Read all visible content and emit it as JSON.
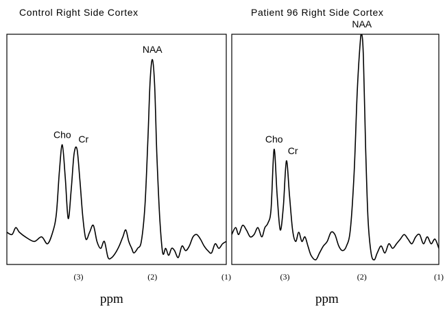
{
  "chart_data": [
    {
      "type": "line",
      "title": "Control Right Side Cortex",
      "xlabel": "ppm",
      "ylabel": "",
      "x_reversed": true,
      "xlim": [
        3.97,
        1.0
      ],
      "ylim": [
        0,
        1
      ],
      "ticks": [
        {
          "value": 3,
          "label": "(3)"
        },
        {
          "value": 2,
          "label": "(2)"
        },
        {
          "value": 1,
          "label": "(1)"
        }
      ],
      "peaks": [
        {
          "label": "Cho",
          "x": 3.22,
          "y": 0.52
        },
        {
          "label": "Cr",
          "x": 3.02,
          "y": 0.5
        },
        {
          "label": "NAA",
          "x": 2.0,
          "y": 0.89
        }
      ],
      "series": [
        {
          "x": [
            3.97,
            3.9,
            3.85,
            3.8,
            3.72,
            3.6,
            3.5,
            3.42,
            3.35,
            3.3,
            3.26,
            3.22,
            3.18,
            3.14,
            3.1,
            3.06,
            3.02,
            2.98,
            2.94,
            2.9,
            2.85,
            2.8,
            2.75,
            2.7,
            2.65,
            2.6,
            2.55,
            2.5,
            2.45,
            2.4,
            2.36,
            2.32,
            2.28,
            2.25,
            2.2,
            2.15,
            2.1,
            2.06,
            2.03,
            2.0,
            1.97,
            1.94,
            1.9,
            1.86,
            1.82,
            1.78,
            1.74,
            1.7,
            1.65,
            1.6,
            1.55,
            1.5,
            1.45,
            1.4,
            1.35,
            1.3,
            1.25,
            1.2,
            1.15,
            1.1,
            1.05,
            1.0
          ],
          "y": [
            0.14,
            0.13,
            0.16,
            0.14,
            0.12,
            0.1,
            0.12,
            0.09,
            0.14,
            0.22,
            0.4,
            0.52,
            0.38,
            0.2,
            0.32,
            0.48,
            0.5,
            0.36,
            0.2,
            0.11,
            0.14,
            0.17,
            0.1,
            0.07,
            0.1,
            0.03,
            0.03,
            0.05,
            0.08,
            0.12,
            0.15,
            0.1,
            0.07,
            0.05,
            0.07,
            0.1,
            0.26,
            0.55,
            0.8,
            0.89,
            0.78,
            0.48,
            0.2,
            0.05,
            0.07,
            0.04,
            0.07,
            0.06,
            0.03,
            0.08,
            0.06,
            0.08,
            0.12,
            0.13,
            0.11,
            0.08,
            0.06,
            0.05,
            0.09,
            0.07,
            0.09,
            0.1
          ]
        }
      ]
    },
    {
      "type": "line",
      "title": "Patient 96 Right Side Cortex",
      "xlabel": "ppm",
      "ylabel": "",
      "x_reversed": true,
      "xlim": [
        3.69,
        1.0
      ],
      "ylim": [
        0,
        1
      ],
      "ticks": [
        {
          "value": 3,
          "label": "(3)"
        },
        {
          "value": 2,
          "label": "(2)"
        },
        {
          "value": 1,
          "label": "(1)"
        }
      ],
      "peaks": [
        {
          "label": "Cho",
          "x": 3.14,
          "y": 0.5
        },
        {
          "label": "Cr",
          "x": 2.98,
          "y": 0.45
        },
        {
          "label": "NAA",
          "x": 2.0,
          "y": 1.0
        }
      ],
      "series": [
        {
          "x": [
            3.69,
            3.64,
            3.6,
            3.55,
            3.5,
            3.45,
            3.4,
            3.35,
            3.3,
            3.26,
            3.22,
            3.18,
            3.14,
            3.1,
            3.06,
            3.02,
            2.98,
            2.94,
            2.9,
            2.86,
            2.82,
            2.78,
            2.74,
            2.7,
            2.66,
            2.6,
            2.55,
            2.5,
            2.45,
            2.4,
            2.35,
            2.3,
            2.25,
            2.2,
            2.15,
            2.1,
            2.06,
            2.02,
            2.0,
            1.98,
            1.95,
            1.92,
            1.88,
            1.84,
            1.8,
            1.75,
            1.7,
            1.65,
            1.6,
            1.55,
            1.5,
            1.45,
            1.4,
            1.35,
            1.3,
            1.25,
            1.2,
            1.15,
            1.1,
            1.05,
            1.0
          ],
          "y": [
            0.13,
            0.16,
            0.13,
            0.17,
            0.15,
            0.12,
            0.13,
            0.16,
            0.12,
            0.16,
            0.18,
            0.24,
            0.5,
            0.3,
            0.15,
            0.25,
            0.45,
            0.3,
            0.15,
            0.1,
            0.14,
            0.1,
            0.12,
            0.08,
            0.04,
            0.02,
            0.05,
            0.08,
            0.1,
            0.14,
            0.13,
            0.08,
            0.06,
            0.08,
            0.15,
            0.4,
            0.75,
            0.97,
            1.0,
            0.9,
            0.5,
            0.2,
            0.05,
            0.02,
            0.05,
            0.08,
            0.05,
            0.09,
            0.07,
            0.09,
            0.11,
            0.13,
            0.11,
            0.09,
            0.12,
            0.13,
            0.09,
            0.12,
            0.09,
            0.11,
            0.07
          ]
        }
      ]
    }
  ]
}
